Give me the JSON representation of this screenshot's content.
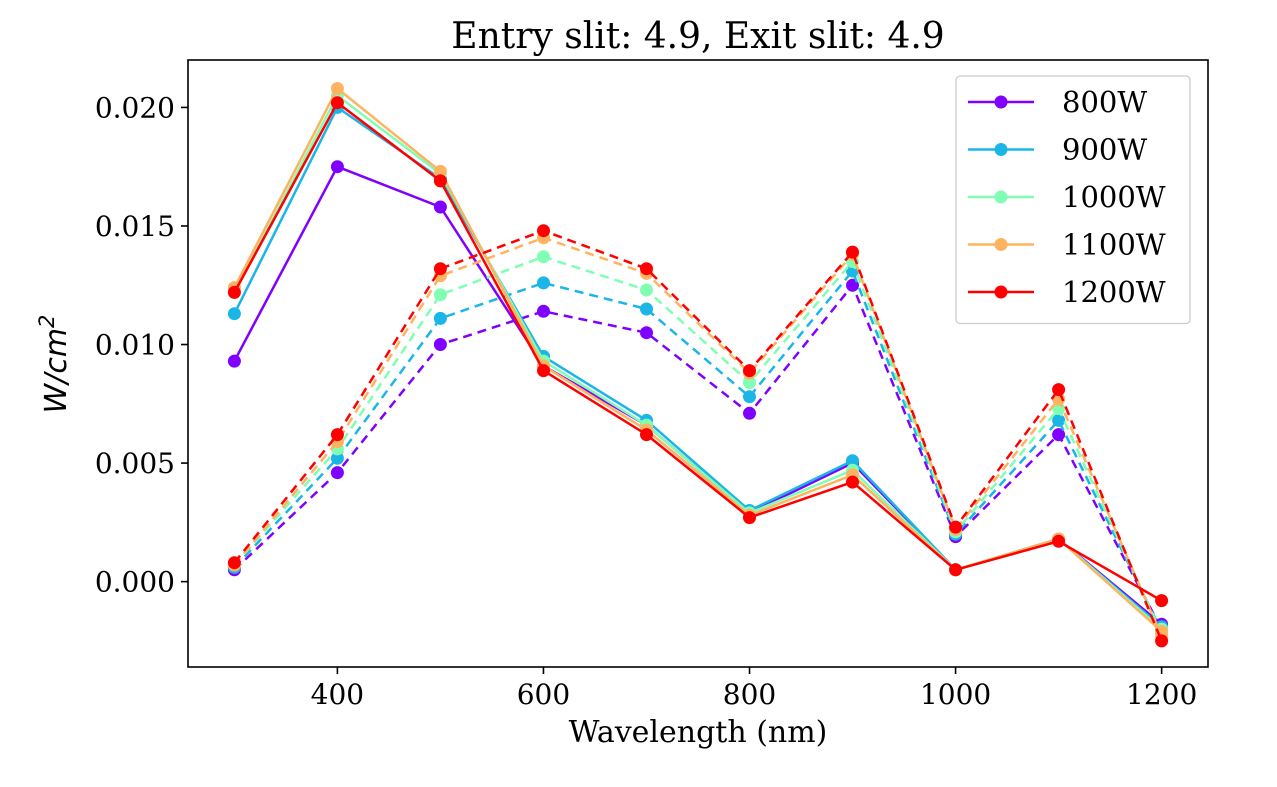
{
  "chart_data": {
    "type": "line",
    "title": "Entry slit: 4.9, Exit slit: 4.9",
    "xlabel": "Wavelength (nm)",
    "ylabel": "W/cm",
    "ylabel_superscript": "2",
    "xlim": [
      255,
      1245
    ],
    "ylim": [
      -0.0036,
      0.022
    ],
    "x_ticks": [
      400,
      600,
      800,
      1000,
      1200
    ],
    "y_ticks": [
      0.0,
      0.005,
      0.01,
      0.015,
      0.02
    ],
    "y_tick_labels": [
      "0.000",
      "0.005",
      "0.010",
      "0.015",
      "0.020"
    ],
    "legend_position": "top-right",
    "grid": false,
    "x": [
      300,
      400,
      500,
      600,
      700,
      800,
      900,
      1000,
      1100,
      1200
    ],
    "series": [
      {
        "name": "800W",
        "color": "#8000ff",
        "solid": [
          0.0093,
          0.0175,
          0.0158,
          0.0091,
          0.0066,
          0.0029,
          0.005,
          0.0005,
          0.0018,
          -0.0018
        ],
        "dashed": [
          0.0005,
          0.0046,
          0.01,
          0.0114,
          0.0105,
          0.0071,
          0.0125,
          0.0019,
          0.0062,
          -0.002
        ]
      },
      {
        "name": "900W",
        "color": "#1cb5e8",
        "solid": [
          0.0113,
          0.02,
          0.017,
          0.0095,
          0.0068,
          0.003,
          0.0051,
          0.0005,
          0.0018,
          -0.0019
        ],
        "dashed": [
          0.0006,
          0.0052,
          0.0111,
          0.0126,
          0.0115,
          0.0078,
          0.0131,
          0.002,
          0.0068,
          -0.0021
        ]
      },
      {
        "name": "1000W",
        "color": "#80ffb4",
        "solid": [
          0.0122,
          0.0205,
          0.0172,
          0.0093,
          0.0066,
          0.0029,
          0.0047,
          0.0005,
          0.0018,
          -0.002
        ],
        "dashed": [
          0.0007,
          0.0056,
          0.0121,
          0.0137,
          0.0123,
          0.0084,
          0.0135,
          0.0021,
          0.0073,
          -0.0022
        ]
      },
      {
        "name": "1100W",
        "color": "#ffb360",
        "solid": [
          0.0124,
          0.0208,
          0.0173,
          0.0091,
          0.0064,
          0.0028,
          0.0045,
          0.0005,
          0.0018,
          -0.0021
        ],
        "dashed": [
          0.0007,
          0.0059,
          0.0129,
          0.0145,
          0.013,
          0.0088,
          0.0138,
          0.0022,
          0.0077,
          -0.0023
        ]
      },
      {
        "name": "1200W",
        "color": "#ff0000",
        "solid": [
          0.0122,
          0.0202,
          0.0169,
          0.0089,
          0.0062,
          0.0027,
          0.0042,
          0.0005,
          0.0017,
          -0.0008
        ],
        "dashed": [
          0.0008,
          0.0062,
          0.0132,
          0.0148,
          0.0132,
          0.0089,
          0.0139,
          0.0023,
          0.0081,
          -0.0025
        ]
      }
    ]
  }
}
